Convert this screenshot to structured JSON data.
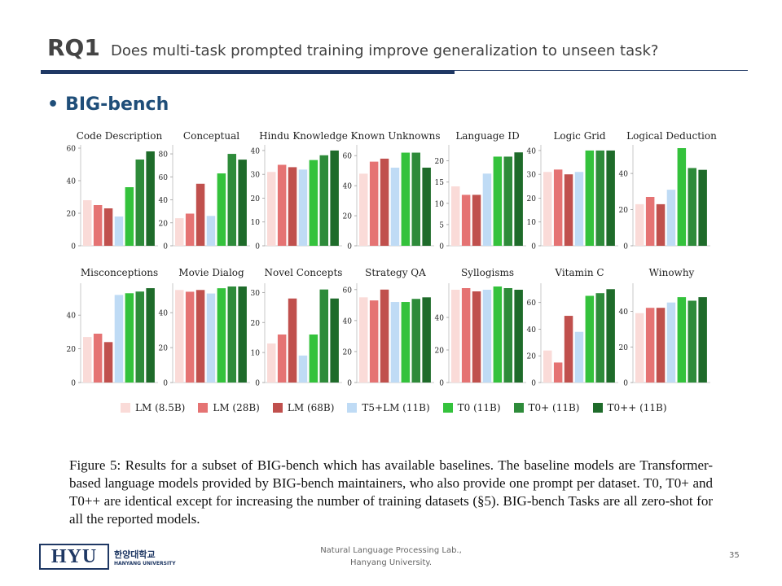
{
  "slide": {
    "rq": "RQ1",
    "question": "Does multi-task prompted training improve generalization to unseen task?",
    "bullet": "BIG-bench",
    "caption": "Figure 5: Results for a subset of BIG-bench which has available baselines. The baseline models are Transformer-based language models provided by BIG-bench maintainers, who also provide one prompt per dataset. T0, T0+ and T0++ are identical except for increasing the number of training datasets (§5). BIG-bench Tasks are all zero-shot for all the reported models.",
    "footer": {
      "logo_main": "HYU",
      "logo_kr": "한양대학교",
      "logo_en": "HANYANG UNIVERSITY",
      "lab_line1": "Natural Language Processing Lab.,",
      "lab_line2": "Hanyang University.",
      "page": "35"
    }
  },
  "legend": [
    {
      "label": "LM (8.5B)",
      "color": "#fadbd8"
    },
    {
      "label": "LM (28B)",
      "color": "#e57373"
    },
    {
      "label": "LM (68B)",
      "color": "#c0504d"
    },
    {
      "label": "T5+LM (11B)",
      "color": "#bfdbf5"
    },
    {
      "label": "T0 (11B)",
      "color": "#34c23c"
    },
    {
      "label": "T0+ (11B)",
      "color": "#2e8b3a"
    },
    {
      "label": "T0++ (11B)",
      "color": "#1e6b2a"
    }
  ],
  "chart_data": [
    {
      "type": "bar",
      "title": "Code Description",
      "ylim": [
        0,
        60
      ],
      "yticks": [
        0,
        20,
        40,
        60
      ],
      "values": [
        28,
        25,
        23,
        18,
        36,
        53,
        58
      ]
    },
    {
      "type": "bar",
      "title": "Conceptual",
      "ylim": [
        0,
        85
      ],
      "yticks": [
        0,
        20,
        40,
        60,
        80
      ],
      "values": [
        24,
        28,
        54,
        26,
        63,
        80,
        75
      ]
    },
    {
      "type": "bar",
      "title": "Hindu Knowledge",
      "ylim": [
        0,
        41
      ],
      "yticks": [
        0,
        10,
        20,
        30,
        40
      ],
      "values": [
        31,
        34,
        33,
        32,
        36,
        38,
        40
      ]
    },
    {
      "type": "bar",
      "title": "Known Unknowns",
      "ylim": [
        0,
        65
      ],
      "yticks": [
        0,
        20,
        40,
        60
      ],
      "values": [
        48,
        56,
        58,
        52,
        62,
        62,
        52
      ]
    },
    {
      "type": "bar",
      "title": "Language ID",
      "ylim": [
        0,
        23
      ],
      "yticks": [
        0,
        5,
        10,
        15,
        20
      ],
      "values": [
        14,
        12,
        12,
        17,
        21,
        21,
        22
      ]
    },
    {
      "type": "bar",
      "title": "Logic Grid",
      "ylim": [
        0,
        41
      ],
      "yticks": [
        0,
        10,
        20,
        30,
        40
      ],
      "values": [
        31,
        32,
        30,
        31,
        40,
        40,
        40
      ]
    },
    {
      "type": "bar",
      "title": "Logical Deduction",
      "ylim": [
        0,
        54
      ],
      "yticks": [
        0,
        20,
        40
      ],
      "values": [
        23,
        27,
        23,
        31,
        54,
        43,
        42
      ]
    },
    {
      "type": "bar",
      "title": "Misconceptions",
      "ylim": [
        0,
        57
      ],
      "yticks": [
        0,
        20,
        40
      ],
      "values": [
        27,
        29,
        24,
        52,
        53,
        54,
        56
      ]
    },
    {
      "type": "bar",
      "title": "Movie Dialog",
      "ylim": [
        0,
        55
      ],
      "yticks": [
        0,
        20,
        40
      ],
      "values": [
        53,
        52,
        53,
        51,
        54,
        55,
        55
      ]
    },
    {
      "type": "bar",
      "title": "Novel Concepts",
      "ylim": [
        0,
        32
      ],
      "yticks": [
        0,
        10,
        20,
        30
      ],
      "values": [
        13,
        16,
        28,
        9,
        16,
        31,
        28
      ]
    },
    {
      "type": "bar",
      "title": "Strategy QA",
      "ylim": [
        0,
        62
      ],
      "yticks": [
        0,
        20,
        40,
        60
      ],
      "values": [
        55,
        53,
        60,
        52,
        52,
        54,
        55
      ]
    },
    {
      "type": "bar",
      "title": "Syllogisms",
      "ylim": [
        0,
        59
      ],
      "yticks": [
        0,
        20,
        40
      ],
      "values": [
        57,
        58,
        56,
        57,
        59,
        58,
        57
      ]
    },
    {
      "type": "bar",
      "title": "Vitamin C",
      "ylim": [
        0,
        72
      ],
      "yticks": [
        0,
        20,
        40,
        60
      ],
      "values": [
        24,
        15,
        50,
        38,
        65,
        67,
        70
      ]
    },
    {
      "type": "bar",
      "title": "Winowhy",
      "ylim": [
        0,
        54
      ],
      "yticks": [
        0,
        20,
        40
      ],
      "values": [
        39,
        42,
        42,
        45,
        48,
        46,
        48
      ]
    }
  ]
}
